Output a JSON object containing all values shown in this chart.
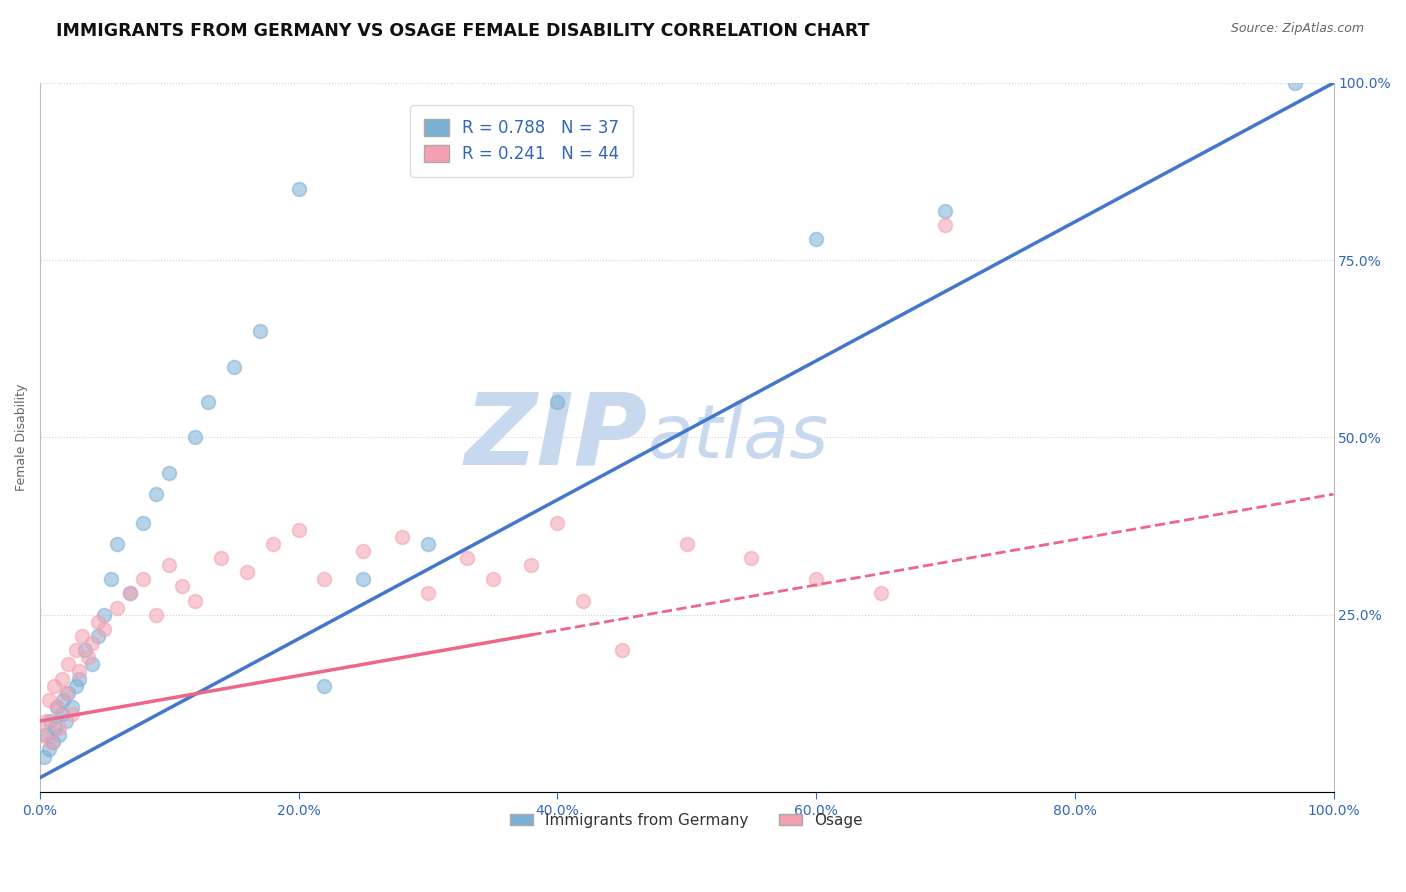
{
  "title": "IMMIGRANTS FROM GERMANY VS OSAGE FEMALE DISABILITY CORRELATION CHART",
  "source_text": "Source: ZipAtlas.com",
  "ylabel": "Female Disability",
  "legend_label_blue": "Immigrants from Germany",
  "legend_label_pink": "Osage",
  "R_blue": 0.788,
  "N_blue": 37,
  "R_pink": 0.241,
  "N_pink": 44,
  "blue_color": "#7BAFD4",
  "pink_color": "#F4A0B0",
  "blue_line_color": "#4477CC",
  "pink_line_color": "#EE6688",
  "watermark_zip": "ZIP",
  "watermark_atlas": "atlas",
  "blue_scatter_x": [
    0.3,
    0.5,
    0.7,
    0.8,
    1.0,
    1.2,
    1.3,
    1.5,
    1.7,
    1.8,
    2.0,
    2.2,
    2.5,
    2.8,
    3.0,
    3.5,
    4.0,
    4.5,
    5.0,
    5.5,
    6.0,
    7.0,
    8.0,
    9.0,
    10.0,
    12.0,
    13.0,
    15.0,
    17.0,
    20.0,
    22.0,
    25.0,
    30.0,
    40.0,
    60.0,
    70.0,
    97.0
  ],
  "blue_scatter_y": [
    5.0,
    8.0,
    6.0,
    10.0,
    7.0,
    9.0,
    12.0,
    8.0,
    11.0,
    13.0,
    10.0,
    14.0,
    12.0,
    15.0,
    16.0,
    20.0,
    18.0,
    22.0,
    25.0,
    30.0,
    35.0,
    28.0,
    38.0,
    42.0,
    45.0,
    50.0,
    55.0,
    60.0,
    65.0,
    85.0,
    15.0,
    30.0,
    35.0,
    55.0,
    78.0,
    82.0,
    100.0
  ],
  "pink_scatter_x": [
    0.2,
    0.5,
    0.7,
    0.9,
    1.1,
    1.3,
    1.5,
    1.7,
    2.0,
    2.2,
    2.5,
    2.8,
    3.0,
    3.3,
    3.7,
    4.0,
    4.5,
    5.0,
    6.0,
    7.0,
    8.0,
    9.0,
    10.0,
    11.0,
    12.0,
    14.0,
    16.0,
    18.0,
    20.0,
    22.0,
    25.0,
    28.0,
    30.0,
    33.0,
    35.0,
    38.0,
    40.0,
    42.0,
    45.0,
    50.0,
    55.0,
    60.0,
    65.0,
    70.0
  ],
  "pink_scatter_y": [
    8.0,
    10.0,
    13.0,
    7.0,
    15.0,
    12.0,
    9.0,
    16.0,
    14.0,
    18.0,
    11.0,
    20.0,
    17.0,
    22.0,
    19.0,
    21.0,
    24.0,
    23.0,
    26.0,
    28.0,
    30.0,
    25.0,
    32.0,
    29.0,
    27.0,
    33.0,
    31.0,
    35.0,
    37.0,
    30.0,
    34.0,
    36.0,
    28.0,
    33.0,
    30.0,
    32.0,
    38.0,
    27.0,
    20.0,
    35.0,
    33.0,
    30.0,
    28.0,
    80.0
  ],
  "blue_line_start_x": 0,
  "blue_line_start_y": 2,
  "blue_line_end_x": 100,
  "blue_line_end_y": 100,
  "pink_solid_end_x": 38,
  "pink_line_start_x": 0,
  "pink_line_start_y": 10,
  "pink_line_end_x": 100,
  "pink_line_end_y": 42,
  "xlim": [
    0,
    100
  ],
  "ylim": [
    0,
    100
  ],
  "xtick_labels": [
    "0.0%",
    "20.0%",
    "40.0%",
    "60.0%",
    "80.0%",
    "100.0%"
  ],
  "xtick_vals": [
    0,
    20,
    40,
    60,
    80,
    100
  ],
  "ytick_right_labels": [
    "25.0%",
    "50.0%",
    "75.0%",
    "100.0%"
  ],
  "ytick_right_vals": [
    25,
    50,
    75,
    100
  ],
  "grid_color": "#CCCCCC",
  "background_color": "#FFFFFF",
  "title_fontsize": 12.5,
  "axis_label_fontsize": 9,
  "tick_fontsize": 10,
  "legend_fontsize": 12,
  "watermark_color_zip": "#C8D8EE",
  "watermark_color_atlas": "#C8D8EE",
  "watermark_fontsize": 72,
  "scatter_size": 100
}
